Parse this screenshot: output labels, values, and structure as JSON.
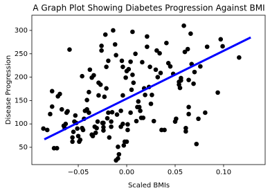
{
  "chart_data": {
    "type": "scatter",
    "title": "A Graph Plot Showing Diabetes Progression Against BMI",
    "xlabel": "Scaled BMIs",
    "ylabel": "Disease Progression",
    "xlim": [
      -0.0979,
      0.1429
    ],
    "ylim": [
      13,
      332.5
    ],
    "xticks": [
      {
        "value": -0.05,
        "label": "−0.05"
      },
      {
        "value": 0,
        "label": "0.00"
      },
      {
        "value": 0.05,
        "label": "0.05"
      },
      {
        "value": 0.1,
        "label": "0.10"
      }
    ],
    "yticks": [
      50,
      100,
      150,
      200,
      250,
      300
    ],
    "series": [
      {
        "type": "scatter",
        "color": "#000000",
        "x": [
          -0.086,
          -0.082,
          -0.079,
          -0.077,
          -0.077,
          -0.075,
          -0.072,
          -0.071,
          -0.069,
          -0.067,
          -0.065,
          -0.064,
          -0.063,
          -0.062,
          -0.061,
          -0.059,
          -0.056,
          -0.056,
          -0.055,
          -0.054,
          -0.053,
          -0.052,
          -0.051,
          -0.05,
          -0.049,
          -0.048,
          -0.046,
          -0.046,
          -0.045,
          -0.044,
          -0.043,
          -0.041,
          -0.041,
          -0.039,
          -0.039,
          -0.038,
          -0.036,
          -0.036,
          -0.035,
          -0.034,
          -0.033,
          -0.032,
          -0.031,
          -0.03,
          -0.029,
          -0.029,
          -0.027,
          -0.026,
          -0.026,
          -0.025,
          -0.024,
          -0.024,
          -0.024,
          -0.023,
          -0.022,
          -0.021,
          -0.021,
          -0.02,
          -0.019,
          -0.019,
          -0.018,
          -0.016,
          -0.016,
          -0.015,
          -0.014,
          -0.012,
          -0.011,
          -0.011,
          -0.01,
          -0.009,
          -0.009,
          -0.008,
          -0.006,
          -0.006,
          -0.005,
          -0.004,
          -0.004,
          -0.004,
          -0.003,
          -0.002,
          -0.001,
          0,
          0,
          0.001,
          0.001,
          0.002,
          0.004,
          0.004,
          0.005,
          0.006,
          0.006,
          0.007,
          0.009,
          0.01,
          0.011,
          0.012,
          0.013,
          0.014,
          0.015,
          0.016,
          0.017,
          0.018,
          0.019,
          0.021,
          0.021,
          0.023,
          0.024,
          0.025,
          0.026,
          0.028,
          0.03,
          0.031,
          0.032,
          0.034,
          0.035,
          0.036,
          0.039,
          0.041,
          0.043,
          0.045,
          0.048,
          0.05,
          0.051,
          0.054,
          0.054,
          0.055,
          0.056,
          0.056,
          0.059,
          0.06,
          0.061,
          0.061,
          0.063,
          0.064,
          0.064,
          0.064,
          0.066,
          0.067,
          0.069,
          0.07,
          0.072,
          0.074,
          0.076,
          0.081,
          0.083,
          0.094,
          0.097,
          0.099,
          0.116
        ],
        "values": [
          90,
          87,
          121,
          137,
          170,
          48,
          48,
          159,
          164,
          131,
          96,
          91,
          100,
          124,
          127,
          259,
          71,
          62,
          83,
          105,
          118,
          102,
          90,
          74,
          62,
          66,
          91,
          202,
          87,
          111,
          128,
          151,
          131,
          168,
          124,
          216,
          77,
          199,
          74,
          204,
          94,
          81,
          91,
          105,
          161,
          188,
          184,
          267,
          257,
          102,
          93,
          86,
          102,
          158,
          291,
          176,
          222,
          112,
          235,
          124,
          71,
          94,
          105,
          125,
          300,
          270,
          22,
          247,
          120,
          26,
          51,
          35,
          94,
          128,
          235,
          222,
          100,
          161,
          54,
          62,
          199,
          213,
          62,
          87,
          99,
          217,
          233,
          124,
          173,
          297,
          205,
          188,
          250,
          106,
          136,
          148,
          136,
          128,
          113,
          232,
          113,
          176,
          162,
          287,
          265,
          179,
          222,
          143,
          162,
          106,
          216,
          257,
          200,
          251,
          209,
          87,
          87,
          273,
          230,
          223,
          207,
          105,
          111,
          184,
          190,
          177,
          198,
          193,
          310,
          254,
          91,
          84,
          260,
          194,
          136,
          121,
          293,
          228,
          186,
          211,
          57,
          111,
          223,
          124,
          265,
          167,
          281,
          266,
          242
        ]
      },
      {
        "type": "line",
        "color": "#0000ff",
        "x": [
          -0.085,
          0.128
        ],
        "values": [
          67,
          285
        ]
      }
    ]
  }
}
